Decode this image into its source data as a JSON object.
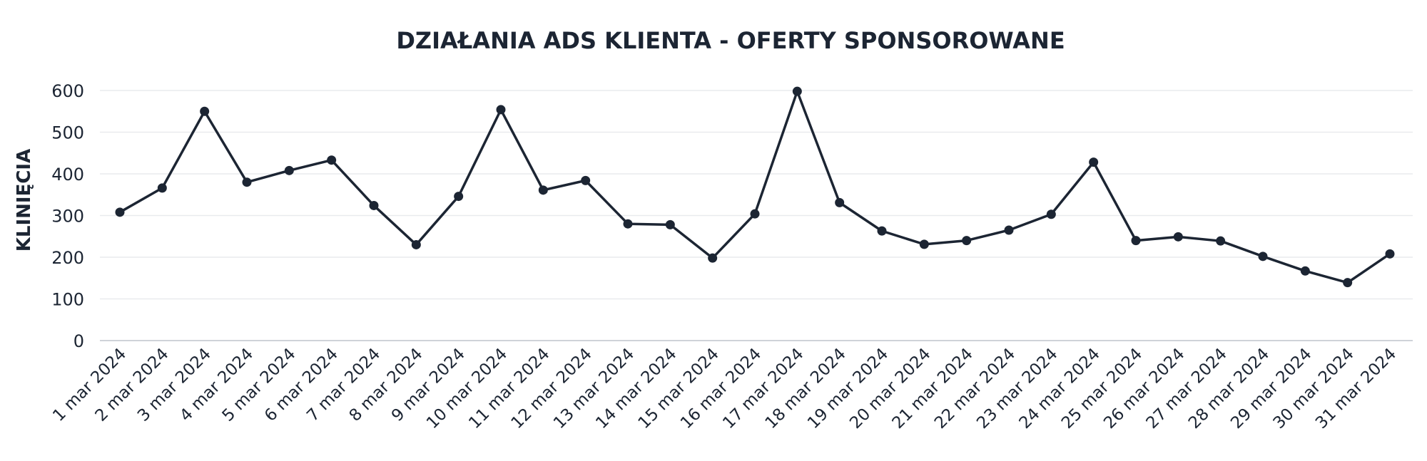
{
  "chart_data": {
    "type": "line",
    "title": "DZIAŁANIA ADS KLIENTA - OFERTY SPONSOROWANE",
    "xlabel": "",
    "ylabel": "KLINIĘCIA",
    "ylim": [
      0,
      600
    ],
    "yticks": [
      0,
      100,
      200,
      300,
      400,
      500,
      600
    ],
    "grid": true,
    "legend": "none",
    "color": "#1c2533",
    "categories": [
      "1 mar 2024",
      "2 mar 2024",
      "3 mar 2024",
      "4 mar 2024",
      "5 mar 2024",
      "6 mar 2024",
      "7 mar 2024",
      "8 mar 2024",
      "9 mar 2024",
      "10 mar 2024",
      "11 mar 2024",
      "12 mar 2024",
      "13 mar 2024",
      "14 mar 2024",
      "15 mar 2024",
      "16 mar 2024",
      "17 mar 2024",
      "18 mar 2024",
      "19 mar 2024",
      "20 mar 2024",
      "21 mar 2024",
      "22 mar 2024",
      "23 mar 2024",
      "24 mar 2024",
      "25 mar 2024",
      "26 mar 2024",
      "27 mar 2024",
      "28 mar 2024",
      "29 mar 2024",
      "30 mar 2024",
      "31 mar 2024"
    ],
    "series": [
      {
        "values": [
          308,
          366,
          550,
          380,
          408,
          433,
          324,
          230,
          346,
          554,
          361,
          384,
          280,
          278,
          198,
          304,
          598,
          331,
          263,
          231,
          240,
          265,
          303,
          428,
          240,
          249,
          239,
          202,
          167,
          139,
          208
        ]
      }
    ]
  }
}
